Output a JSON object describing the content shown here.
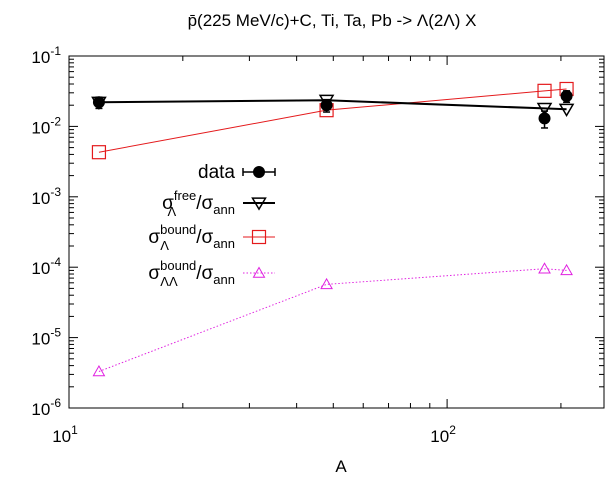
{
  "chart_data": {
    "type": "scatter",
    "title": "p̄(225 MeV/c)+C, Ti, Ta, Pb -> Λ(2Λ) X",
    "xlabel": "A",
    "ylabel": "",
    "xscale": "log",
    "yscale": "log",
    "xlim": [
      10,
      260
    ],
    "ylim": [
      1e-06,
      0.1
    ],
    "x_ticks": [
      {
        "value": 10,
        "base": "10",
        "exp": "1"
      },
      {
        "value": 100,
        "base": "10",
        "exp": "2"
      }
    ],
    "y_ticks": [
      {
        "value": 1e-06,
        "base": "10",
        "exp": "-6"
      },
      {
        "value": 1e-05,
        "base": "10",
        "exp": "-5"
      },
      {
        "value": 0.0001,
        "base": "10",
        "exp": "-4"
      },
      {
        "value": 0.001,
        "base": "10",
        "exp": "-3"
      },
      {
        "value": 0.01,
        "base": "10",
        "exp": "-2"
      },
      {
        "value": 0.1,
        "base": "10",
        "exp": "-1"
      }
    ],
    "grid": false,
    "legend_position": "center-left",
    "series": [
      {
        "key": "data",
        "legend_main": "data",
        "legend_sup": "",
        "legend_sub": "",
        "legend_den": "",
        "marker": "filled-circle",
        "line": "none",
        "color": "#000000",
        "points": [
          {
            "x": 12,
            "y": 0.022,
            "err": 0.004
          },
          {
            "x": 48,
            "y": 0.02,
            "err": 0.004
          },
          {
            "x": 181,
            "y": 0.013,
            "err": 0.0035
          },
          {
            "x": 207,
            "y": 0.027,
            "err": 0.005
          }
        ]
      },
      {
        "key": "free",
        "legend_main": "σ",
        "legend_sup": "free",
        "legend_sub": "Λ",
        "legend_den": "/σ",
        "legend_den_sub": "ann",
        "marker": "open-triangle-down",
        "line": "solid",
        "color": "#000000",
        "points": [
          {
            "x": 12,
            "y": 0.022
          },
          {
            "x": 48,
            "y": 0.0235
          },
          {
            "x": 181,
            "y": 0.018
          },
          {
            "x": 207,
            "y": 0.0175
          }
        ]
      },
      {
        "key": "bound",
        "legend_main": "σ",
        "legend_sup": "bound",
        "legend_sub": "Λ",
        "legend_den": "/σ",
        "legend_den_sub": "ann",
        "marker": "open-square",
        "line": "solid",
        "color": "#e41a1c",
        "points": [
          {
            "x": 12,
            "y": 0.0043
          },
          {
            "x": 48,
            "y": 0.017
          },
          {
            "x": 181,
            "y": 0.032
          },
          {
            "x": 207,
            "y": 0.034
          }
        ]
      },
      {
        "key": "bound2",
        "legend_main": "σ",
        "legend_sup": "bound",
        "legend_sub": "ΛΛ",
        "legend_den": "/σ",
        "legend_den_sub": "ann",
        "marker": "open-triangle-up",
        "line": "dotted",
        "color": "#e020e0",
        "points": [
          {
            "x": 12,
            "y": 3.3e-06
          },
          {
            "x": 48,
            "y": 5.7e-05
          },
          {
            "x": 181,
            "y": 9.5e-05
          },
          {
            "x": 207,
            "y": 9e-05
          }
        ]
      }
    ]
  }
}
